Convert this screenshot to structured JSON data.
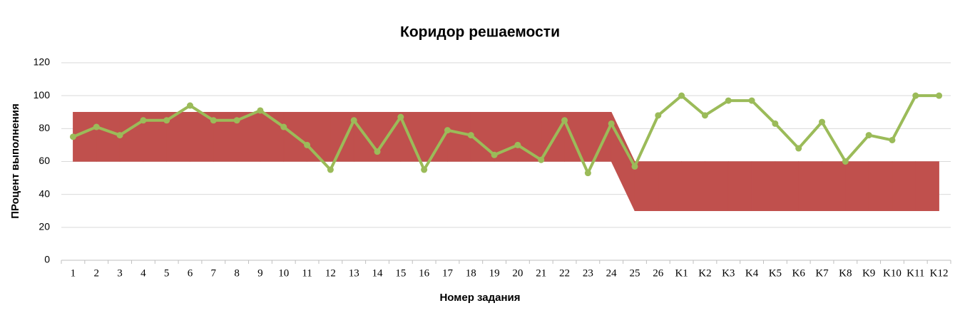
{
  "chart_data": {
    "type": "line",
    "title": "Коридор решаемости",
    "x_label": "Номер задания",
    "y_label": "ПРоцент выполнения",
    "categories": [
      "1",
      "2",
      "3",
      "4",
      "5",
      "6",
      "7",
      "8",
      "9",
      "10",
      "11",
      "12",
      "13",
      "14",
      "15",
      "16",
      "17",
      "18",
      "19",
      "20",
      "21",
      "22",
      "23",
      "24",
      "25",
      "26",
      "K1",
      "K2",
      "K3",
      "K4",
      "K5",
      "K6",
      "K7",
      "K8",
      "K9",
      "K10",
      "K11",
      "K12"
    ],
    "series": [
      {
        "color": "#9bbb59",
        "values": [
          75,
          81,
          76,
          85,
          85,
          94,
          85,
          85,
          91,
          81,
          70,
          55,
          85,
          66,
          87,
          55,
          79,
          76,
          64,
          70,
          61,
          85,
          53,
          83,
          57,
          88,
          100,
          88,
          97,
          97,
          83,
          68,
          84,
          60,
          76,
          73,
          100,
          100
        ]
      }
    ],
    "band": {
      "color": "#c0504d",
      "lower": [
        60,
        60,
        60,
        60,
        60,
        60,
        60,
        60,
        60,
        60,
        60,
        60,
        60,
        60,
        60,
        60,
        60,
        60,
        60,
        60,
        60,
        60,
        60,
        60,
        30,
        30,
        30,
        30,
        30,
        30,
        30,
        30,
        30,
        30,
        30,
        30,
        30,
        30
      ],
      "upper": [
        90,
        90,
        90,
        90,
        90,
        90,
        90,
        90,
        90,
        90,
        90,
        90,
        90,
        90,
        90,
        90,
        90,
        90,
        90,
        90,
        90,
        90,
        90,
        90,
        60,
        60,
        60,
        60,
        60,
        60,
        60,
        60,
        60,
        60,
        60,
        60,
        60,
        60
      ]
    },
    "ylim": [
      0,
      120
    ],
    "yticks": [
      0,
      20,
      40,
      60,
      80,
      100,
      120
    ],
    "grid": true
  }
}
